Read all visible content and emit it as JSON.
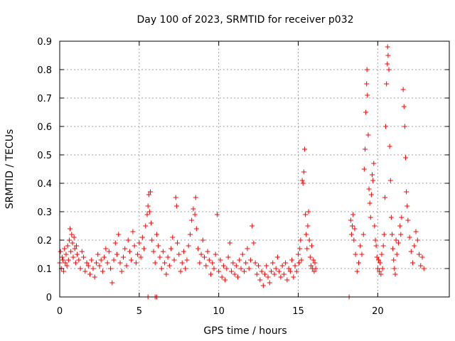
{
  "chart_data": {
    "type": "scatter",
    "title": "Day 100 of 2023, SRMTID for receiver p032",
    "xlabel": "GPS time / hours",
    "ylabel": "SRMTID / TECUs",
    "xlim": [
      0,
      24.5
    ],
    "ylim": [
      0,
      0.9
    ],
    "xticks": [
      0,
      5,
      10,
      15,
      20
    ],
    "xtick_labels": [
      "0",
      "5",
      "10",
      "15",
      "20"
    ],
    "yticks": [
      0,
      0.1,
      0.2,
      0.3,
      0.4,
      0.5,
      0.6,
      0.7,
      0.8,
      0.9
    ],
    "ytick_labels": [
      "0",
      "0.1",
      "0.2",
      "0.3",
      "0.4",
      "0.5",
      "0.6",
      "0.7",
      "0.8",
      "0.9"
    ],
    "grid": true,
    "marker": "plus",
    "series": [
      {
        "name": "SRMTID",
        "color": "#ff0000",
        "points": [
          [
            0.0,
            0.12
          ],
          [
            0.05,
            0.16
          ],
          [
            0.1,
            0.1
          ],
          [
            0.15,
            0.14
          ],
          [
            0.2,
            0.13
          ],
          [
            0.25,
            0.09
          ],
          [
            0.3,
            0.17
          ],
          [
            0.35,
            0.12
          ],
          [
            0.4,
            0.15
          ],
          [
            0.45,
            0.11
          ],
          [
            0.5,
            0.18
          ],
          [
            0.55,
            0.13
          ],
          [
            0.6,
            0.2
          ],
          [
            0.65,
            0.24
          ],
          [
            0.7,
            0.16
          ],
          [
            0.75,
            0.22
          ],
          [
            0.8,
            0.19
          ],
          [
            0.85,
            0.14
          ],
          [
            0.9,
            0.21
          ],
          [
            0.95,
            0.17
          ],
          [
            1.0,
            0.12
          ],
          [
            1.05,
            0.18
          ],
          [
            1.1,
            0.15
          ],
          [
            1.2,
            0.13
          ],
          [
            1.3,
            0.1
          ],
          [
            1.4,
            0.16
          ],
          [
            1.5,
            0.14
          ],
          [
            1.6,
            0.09
          ],
          [
            1.7,
            0.12
          ],
          [
            1.8,
            0.11
          ],
          [
            1.9,
            0.08
          ],
          [
            2.0,
            0.13
          ],
          [
            2.1,
            0.1
          ],
          [
            2.2,
            0.07
          ],
          [
            2.3,
            0.12
          ],
          [
            2.4,
            0.15
          ],
          [
            2.5,
            0.11
          ],
          [
            2.6,
            0.13
          ],
          [
            2.7,
            0.09
          ],
          [
            2.8,
            0.14
          ],
          [
            2.9,
            0.17
          ],
          [
            3.0,
            0.12
          ],
          [
            3.1,
            0.16
          ],
          [
            3.2,
            0.1
          ],
          [
            3.3,
            0.05
          ],
          [
            3.4,
            0.13
          ],
          [
            3.5,
            0.19
          ],
          [
            3.6,
            0.15
          ],
          [
            3.7,
            0.22
          ],
          [
            3.8,
            0.12
          ],
          [
            3.9,
            0.09
          ],
          [
            4.0,
            0.14
          ],
          [
            4.1,
            0.17
          ],
          [
            4.2,
            0.11
          ],
          [
            4.3,
            0.2
          ],
          [
            4.4,
            0.16
          ],
          [
            4.5,
            0.13
          ],
          [
            4.6,
            0.23
          ],
          [
            4.7,
            0.18
          ],
          [
            4.8,
            0.12
          ],
          [
            4.9,
            0.15
          ],
          [
            5.0,
            0.19
          ],
          [
            5.1,
            0.14
          ],
          [
            5.2,
            0.21
          ],
          [
            5.3,
            0.17
          ],
          [
            5.4,
            0.25
          ],
          [
            5.5,
            0.29
          ],
          [
            5.55,
            0.32
          ],
          [
            5.6,
            0.36
          ],
          [
            5.65,
            0.3
          ],
          [
            5.7,
            0.37
          ],
          [
            5.75,
            0.26
          ],
          [
            5.8,
            0.2
          ],
          [
            5.9,
            0.16
          ],
          [
            6.0,
            0.12
          ],
          [
            6.1,
            0.22
          ],
          [
            6.2,
            0.18
          ],
          [
            6.3,
            0.14
          ],
          [
            6.4,
            0.1
          ],
          [
            6.5,
            0.16
          ],
          [
            6.6,
            0.12
          ],
          [
            6.7,
            0.08
          ],
          [
            6.8,
            0.14
          ],
          [
            6.9,
            0.11
          ],
          [
            7.0,
            0.17
          ],
          [
            7.1,
            0.21
          ],
          [
            7.2,
            0.13
          ],
          [
            7.3,
            0.35
          ],
          [
            7.35,
            0.32
          ],
          [
            7.4,
            0.19
          ],
          [
            7.5,
            0.15
          ],
          [
            7.6,
            0.09
          ],
          [
            7.7,
            0.12
          ],
          [
            7.8,
            0.16
          ],
          [
            7.9,
            0.1
          ],
          [
            8.0,
            0.13
          ],
          [
            8.1,
            0.18
          ],
          [
            8.2,
            0.22
          ],
          [
            8.3,
            0.27
          ],
          [
            8.4,
            0.31
          ],
          [
            8.5,
            0.29
          ],
          [
            8.55,
            0.35
          ],
          [
            8.6,
            0.24
          ],
          [
            8.7,
            0.17
          ],
          [
            8.8,
            0.12
          ],
          [
            8.9,
            0.15
          ],
          [
            9.0,
            0.2
          ],
          [
            9.1,
            0.14
          ],
          [
            9.2,
            0.11
          ],
          [
            9.3,
            0.16
          ],
          [
            9.4,
            0.13
          ],
          [
            9.5,
            0.08
          ],
          [
            9.6,
            0.12
          ],
          [
            9.7,
            0.1
          ],
          [
            9.8,
            0.15
          ],
          [
            9.9,
            0.29
          ],
          [
            10.0,
            0.09
          ],
          [
            10.1,
            0.13
          ],
          [
            10.2,
            0.07
          ],
          [
            10.3,
            0.11
          ],
          [
            10.4,
            0.06
          ],
          [
            10.5,
            0.1
          ],
          [
            10.6,
            0.14
          ],
          [
            10.7,
            0.19
          ],
          [
            10.8,
            0.09
          ],
          [
            10.9,
            0.12
          ],
          [
            11.0,
            0.08
          ],
          [
            11.1,
            0.11
          ],
          [
            11.2,
            0.07
          ],
          [
            11.3,
            0.13
          ],
          [
            11.4,
            0.1
          ],
          [
            11.5,
            0.15
          ],
          [
            11.6,
            0.09
          ],
          [
            11.7,
            0.12
          ],
          [
            11.8,
            0.17
          ],
          [
            11.9,
            0.1
          ],
          [
            12.0,
            0.13
          ],
          [
            12.1,
            0.25
          ],
          [
            12.2,
            0.19
          ],
          [
            12.3,
            0.12
          ],
          [
            12.4,
            0.08
          ],
          [
            12.5,
            0.11
          ],
          [
            12.6,
            0.06
          ],
          [
            12.7,
            0.09
          ],
          [
            12.8,
            0.04
          ],
          [
            12.9,
            0.08
          ],
          [
            13.0,
            0.11
          ],
          [
            13.1,
            0.07
          ],
          [
            13.2,
            0.05
          ],
          [
            13.3,
            0.09
          ],
          [
            13.4,
            0.12
          ],
          [
            13.5,
            0.08
          ],
          [
            13.6,
            0.1
          ],
          [
            13.7,
            0.14
          ],
          [
            13.8,
            0.09
          ],
          [
            13.9,
            0.07
          ],
          [
            14.0,
            0.11
          ],
          [
            14.1,
            0.08
          ],
          [
            14.2,
            0.12
          ],
          [
            14.3,
            0.06
          ],
          [
            14.4,
            0.1
          ],
          [
            14.5,
            0.09
          ],
          [
            14.6,
            0.13
          ],
          [
            14.7,
            0.07
          ],
          [
            14.8,
            0.11
          ],
          [
            14.9,
            0.09
          ],
          [
            15.0,
            0.15
          ],
          [
            15.05,
            0.12
          ],
          [
            15.1,
            0.17
          ],
          [
            15.15,
            0.2
          ],
          [
            15.2,
            0.13
          ],
          [
            15.25,
            0.41
          ],
          [
            15.3,
            0.4
          ],
          [
            15.35,
            0.44
          ],
          [
            15.4,
            0.52
          ],
          [
            15.45,
            0.29
          ],
          [
            15.5,
            0.22
          ],
          [
            15.55,
            0.17
          ],
          [
            15.6,
            0.25
          ],
          [
            15.65,
            0.3
          ],
          [
            15.7,
            0.2
          ],
          [
            15.75,
            0.14
          ],
          [
            15.8,
            0.11
          ],
          [
            15.85,
            0.18
          ],
          [
            15.9,
            0.1
          ],
          [
            15.95,
            0.13
          ],
          [
            16.0,
            0.09
          ],
          [
            16.05,
            0.12
          ],
          [
            16.1,
            0.1
          ],
          [
            18.3,
            0.27
          ],
          [
            18.35,
            0.22
          ],
          [
            18.4,
            0.25
          ],
          [
            18.45,
            0.29
          ],
          [
            18.5,
            0.2
          ],
          [
            18.55,
            0.24
          ],
          [
            18.6,
            0.15
          ],
          [
            18.7,
            0.09
          ],
          [
            18.8,
            0.12
          ],
          [
            18.9,
            0.18
          ],
          [
            19.0,
            0.15
          ],
          [
            19.1,
            0.22
          ],
          [
            19.15,
            0.45
          ],
          [
            19.2,
            0.52
          ],
          [
            19.25,
            0.65
          ],
          [
            19.3,
            0.75
          ],
          [
            19.32,
            0.8
          ],
          [
            19.35,
            0.71
          ],
          [
            19.4,
            0.57
          ],
          [
            19.45,
            0.38
          ],
          [
            19.5,
            0.33
          ],
          [
            19.55,
            0.28
          ],
          [
            19.6,
            0.36
          ],
          [
            19.65,
            0.43
          ],
          [
            19.7,
            0.41
          ],
          [
            19.75,
            0.47
          ],
          [
            19.8,
            0.25
          ],
          [
            19.85,
            0.2
          ],
          [
            19.9,
            0.18
          ],
          [
            19.95,
            0.14
          ],
          [
            20.0,
            0.1
          ],
          [
            20.05,
            0.13
          ],
          [
            20.1,
            0.09
          ],
          [
            20.15,
            0.12
          ],
          [
            20.2,
            0.08
          ],
          [
            20.25,
            0.15
          ],
          [
            20.3,
            0.1
          ],
          [
            20.35,
            0.18
          ],
          [
            20.4,
            0.22
          ],
          [
            20.45,
            0.35
          ],
          [
            20.5,
            0.6
          ],
          [
            20.55,
            0.75
          ],
          [
            20.6,
            0.82
          ],
          [
            20.62,
            0.88
          ],
          [
            20.65,
            0.85
          ],
          [
            20.7,
            0.8
          ],
          [
            20.75,
            0.53
          ],
          [
            20.8,
            0.41
          ],
          [
            20.85,
            0.28
          ],
          [
            20.9,
            0.22
          ],
          [
            20.95,
            0.17
          ],
          [
            21.0,
            0.13
          ],
          [
            21.05,
            0.1
          ],
          [
            21.1,
            0.08
          ],
          [
            21.15,
            0.2
          ],
          [
            21.2,
            0.15
          ],
          [
            21.3,
            0.19
          ],
          [
            21.4,
            0.25
          ],
          [
            21.45,
            0.22
          ],
          [
            21.5,
            0.28
          ],
          [
            21.6,
            0.73
          ],
          [
            21.65,
            0.67
          ],
          [
            21.7,
            0.6
          ],
          [
            21.75,
            0.49
          ],
          [
            21.8,
            0.37
          ],
          [
            21.85,
            0.32
          ],
          [
            21.9,
            0.27
          ],
          [
            22.0,
            0.21
          ],
          [
            22.1,
            0.16
          ],
          [
            22.2,
            0.12
          ],
          [
            22.3,
            0.18
          ],
          [
            22.4,
            0.23
          ],
          [
            22.5,
            0.2
          ],
          [
            22.6,
            0.15
          ],
          [
            22.7,
            0.11
          ],
          [
            22.8,
            0.14
          ],
          [
            22.9,
            0.1
          ],
          [
            5.55,
            0.0
          ],
          [
            6.0,
            0.0
          ],
          [
            6.1,
            0.0
          ],
          [
            18.2,
            0.0
          ]
        ]
      }
    ]
  }
}
